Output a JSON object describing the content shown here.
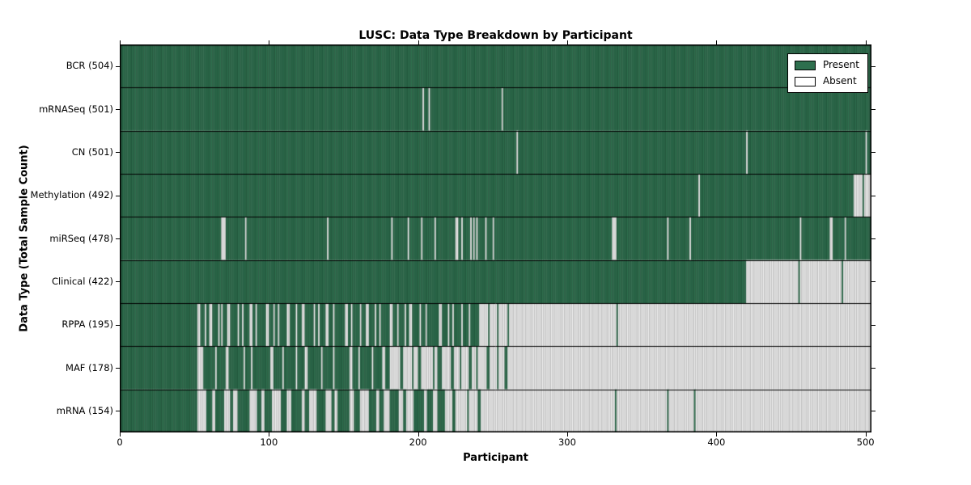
{
  "chart_data": {
    "type": "heatmap",
    "title": "LUSC: Data Type Breakdown by Participant",
    "xlabel": "Participant",
    "ylabel": "Data Type (Total Sample Count)",
    "n_participants": 504,
    "x_range": [
      0,
      504
    ],
    "x_ticks": [
      0,
      100,
      200,
      300,
      400,
      500
    ],
    "grid": false,
    "legend": {
      "position": "upper right",
      "entries": [
        {
          "label": "Present",
          "color": "#2e6f4e"
        },
        {
          "label": "Absent",
          "color": "#ffffff"
        }
      ]
    },
    "colors": {
      "present": "#2e6f4e",
      "absent": "#f1f1f1",
      "cell_stripe": "rgba(0,0,0,0.38)",
      "divider": "#000000",
      "border": "#000000"
    },
    "rows": [
      {
        "label": "BCR (504)",
        "total": 504,
        "runs": [
          [
            "P",
            504
          ]
        ]
      },
      {
        "label": "mRNASeq (501)",
        "total": 501,
        "runs": [
          [
            "P",
            203
          ],
          [
            "A",
            1
          ],
          [
            "P",
            3
          ],
          [
            "A",
            1
          ],
          [
            "P",
            48
          ],
          [
            "A",
            1
          ],
          [
            "P",
            247
          ]
        ]
      },
      {
        "label": "CN (501)",
        "total": 501,
        "runs": [
          [
            "P",
            266
          ],
          [
            "A",
            1
          ],
          [
            "P",
            153
          ],
          [
            "A",
            1
          ],
          [
            "P",
            79
          ],
          [
            "A",
            1
          ],
          [
            "P",
            3
          ]
        ]
      },
      {
        "label": "Methylation (492)",
        "total": 492,
        "runs": [
          [
            "P",
            388
          ],
          [
            "A",
            1
          ],
          [
            "P",
            103
          ],
          [
            "A",
            6
          ],
          [
            "P",
            1
          ],
          [
            "A",
            5
          ]
        ]
      },
      {
        "label": "miRSeq (478)",
        "total": 478,
        "runs": [
          [
            "P",
            68
          ],
          [
            "A",
            3
          ],
          [
            "P",
            13
          ],
          [
            "A",
            1
          ],
          [
            "P",
            54
          ],
          [
            "A",
            1
          ],
          [
            "P",
            42
          ],
          [
            "A",
            1
          ],
          [
            "P",
            10
          ],
          [
            "A",
            1
          ],
          [
            "P",
            8
          ],
          [
            "A",
            1
          ],
          [
            "P",
            8
          ],
          [
            "A",
            1
          ],
          [
            "P",
            13
          ],
          [
            "A",
            2
          ],
          [
            "P",
            2
          ],
          [
            "A",
            1
          ],
          [
            "P",
            5
          ],
          [
            "A",
            1
          ],
          [
            "P",
            1
          ],
          [
            "A",
            1
          ],
          [
            "P",
            1
          ],
          [
            "A",
            1
          ],
          [
            "P",
            5
          ],
          [
            "A",
            1
          ],
          [
            "P",
            4
          ],
          [
            "A",
            1
          ],
          [
            "P",
            79
          ],
          [
            "A",
            3
          ],
          [
            "P",
            34
          ],
          [
            "A",
            1
          ],
          [
            "P",
            14
          ],
          [
            "A",
            1
          ],
          [
            "P",
            73
          ],
          [
            "A",
            1
          ],
          [
            "P",
            19
          ],
          [
            "A",
            2
          ],
          [
            "P",
            8
          ],
          [
            "A",
            1
          ],
          [
            "P",
            17
          ]
        ]
      },
      {
        "label": "Clinical (422)",
        "total": 422,
        "runs": [
          [
            "P",
            420
          ],
          [
            "A",
            35
          ],
          [
            "P",
            1
          ],
          [
            "A",
            28
          ],
          [
            "P",
            1
          ],
          [
            "A",
            19
          ]
        ]
      },
      {
        "label": "RPPA (195)",
        "total": 195,
        "runs": [
          [
            "P",
            52
          ],
          [
            "A",
            2
          ],
          [
            "P",
            3
          ],
          [
            "A",
            1
          ],
          [
            "P",
            2
          ],
          [
            "A",
            2
          ],
          [
            "P",
            4
          ],
          [
            "A",
            1
          ],
          [
            "P",
            1
          ],
          [
            "A",
            1
          ],
          [
            "P",
            3
          ],
          [
            "A",
            2
          ],
          [
            "P",
            5
          ],
          [
            "A",
            1
          ],
          [
            "P",
            2
          ],
          [
            "A",
            1
          ],
          [
            "P",
            4
          ],
          [
            "A",
            2
          ],
          [
            "P",
            2
          ],
          [
            "A",
            1
          ],
          [
            "P",
            6
          ],
          [
            "A",
            2
          ],
          [
            "P",
            3
          ],
          [
            "A",
            1
          ],
          [
            "P",
            2
          ],
          [
            "A",
            1
          ],
          [
            "P",
            5
          ],
          [
            "A",
            2
          ],
          [
            "P",
            4
          ],
          [
            "A",
            1
          ],
          [
            "P",
            3
          ],
          [
            "A",
            2
          ],
          [
            "P",
            6
          ],
          [
            "A",
            1
          ],
          [
            "P",
            2
          ],
          [
            "A",
            1
          ],
          [
            "P",
            4
          ],
          [
            "A",
            2
          ],
          [
            "P",
            3
          ],
          [
            "A",
            1
          ],
          [
            "P",
            7
          ],
          [
            "A",
            2
          ],
          [
            "P",
            2
          ],
          [
            "A",
            1
          ],
          [
            "P",
            5
          ],
          [
            "A",
            1
          ],
          [
            "P",
            3
          ],
          [
            "A",
            2
          ],
          [
            "P",
            4
          ],
          [
            "A",
            1
          ],
          [
            "P",
            2
          ],
          [
            "A",
            1
          ],
          [
            "P",
            6
          ],
          [
            "A",
            2
          ],
          [
            "P",
            3
          ],
          [
            "A",
            1
          ],
          [
            "P",
            4
          ],
          [
            "A",
            1
          ],
          [
            "P",
            2
          ],
          [
            "A",
            2
          ],
          [
            "P",
            5
          ],
          [
            "A",
            1
          ],
          [
            "P",
            3
          ],
          [
            "A",
            1
          ],
          [
            "P",
            8
          ],
          [
            "A",
            2
          ],
          [
            "P",
            4
          ],
          [
            "A",
            1
          ],
          [
            "P",
            2
          ],
          [
            "A",
            1
          ],
          [
            "P",
            5
          ],
          [
            "A",
            1
          ],
          [
            "P",
            4
          ],
          [
            "A",
            1
          ],
          [
            "P",
            6
          ],
          [
            "A",
            6
          ],
          [
            "P",
            1
          ],
          [
            "A",
            5
          ],
          [
            "P",
            1
          ],
          [
            "A",
            6
          ],
          [
            "P",
            1
          ],
          [
            "A",
            72
          ],
          [
            "P",
            1
          ],
          [
            "A",
            170
          ]
        ]
      },
      {
        "label": "MAF (178)",
        "total": 178,
        "runs": [
          [
            "P",
            52
          ],
          [
            "A",
            4
          ],
          [
            "P",
            8
          ],
          [
            "A",
            1
          ],
          [
            "P",
            6
          ],
          [
            "A",
            2
          ],
          [
            "P",
            10
          ],
          [
            "A",
            1
          ],
          [
            "P",
            4
          ],
          [
            "A",
            1
          ],
          [
            "P",
            12
          ],
          [
            "A",
            2
          ],
          [
            "P",
            6
          ],
          [
            "A",
            1
          ],
          [
            "P",
            8
          ],
          [
            "A",
            1
          ],
          [
            "P",
            5
          ],
          [
            "A",
            2
          ],
          [
            "P",
            9
          ],
          [
            "A",
            1
          ],
          [
            "P",
            7
          ],
          [
            "A",
            1
          ],
          [
            "P",
            10
          ],
          [
            "A",
            2
          ],
          [
            "P",
            4
          ],
          [
            "A",
            1
          ],
          [
            "P",
            8
          ],
          [
            "A",
            1
          ],
          [
            "P",
            6
          ],
          [
            "A",
            2
          ],
          [
            "P",
            3
          ],
          [
            "A",
            7
          ],
          [
            "P",
            2
          ],
          [
            "A",
            6
          ],
          [
            "P",
            1
          ],
          [
            "A",
            3
          ],
          [
            "P",
            2
          ],
          [
            "A",
            8
          ],
          [
            "P",
            1
          ],
          [
            "A",
            2
          ],
          [
            "P",
            3
          ],
          [
            "A",
            6
          ],
          [
            "P",
            2
          ],
          [
            "A",
            4
          ],
          [
            "P",
            1
          ],
          [
            "A",
            5
          ],
          [
            "P",
            2
          ],
          [
            "A",
            3
          ],
          [
            "P",
            1
          ],
          [
            "A",
            6
          ],
          [
            "P",
            2
          ],
          [
            "A",
            5
          ],
          [
            "P",
            1
          ],
          [
            "A",
            4
          ],
          [
            "P",
            2
          ],
          [
            "A",
            244
          ]
        ]
      },
      {
        "label": "mRNA (154)",
        "total": 154,
        "runs": [
          [
            "P",
            52
          ],
          [
            "A",
            6
          ],
          [
            "P",
            4
          ],
          [
            "A",
            2
          ],
          [
            "P",
            6
          ],
          [
            "A",
            4
          ],
          [
            "P",
            2
          ],
          [
            "A",
            3
          ],
          [
            "P",
            8
          ],
          [
            "A",
            5
          ],
          [
            "P",
            3
          ],
          [
            "A",
            2
          ],
          [
            "P",
            5
          ],
          [
            "A",
            6
          ],
          [
            "P",
            4
          ],
          [
            "A",
            3
          ],
          [
            "P",
            7
          ],
          [
            "A",
            2
          ],
          [
            "P",
            3
          ],
          [
            "A",
            5
          ],
          [
            "P",
            6
          ],
          [
            "A",
            4
          ],
          [
            "P",
            2
          ],
          [
            "A",
            2
          ],
          [
            "P",
            8
          ],
          [
            "A",
            3
          ],
          [
            "P",
            4
          ],
          [
            "A",
            6
          ],
          [
            "P",
            5
          ],
          [
            "A",
            2
          ],
          [
            "P",
            3
          ],
          [
            "A",
            4
          ],
          [
            "P",
            6
          ],
          [
            "A",
            3
          ],
          [
            "P",
            2
          ],
          [
            "A",
            5
          ],
          [
            "P",
            7
          ],
          [
            "A",
            2
          ],
          [
            "P",
            4
          ],
          [
            "A",
            3
          ],
          [
            "P",
            5
          ],
          [
            "A",
            5
          ],
          [
            "P",
            2
          ],
          [
            "A",
            8
          ],
          [
            "P",
            1
          ],
          [
            "A",
            6
          ],
          [
            "P",
            2
          ],
          [
            "A",
            90
          ],
          [
            "P",
            1
          ],
          [
            "A",
            34
          ],
          [
            "P",
            1
          ],
          [
            "A",
            17
          ],
          [
            "P",
            1
          ],
          [
            "A",
            118
          ]
        ]
      }
    ]
  }
}
